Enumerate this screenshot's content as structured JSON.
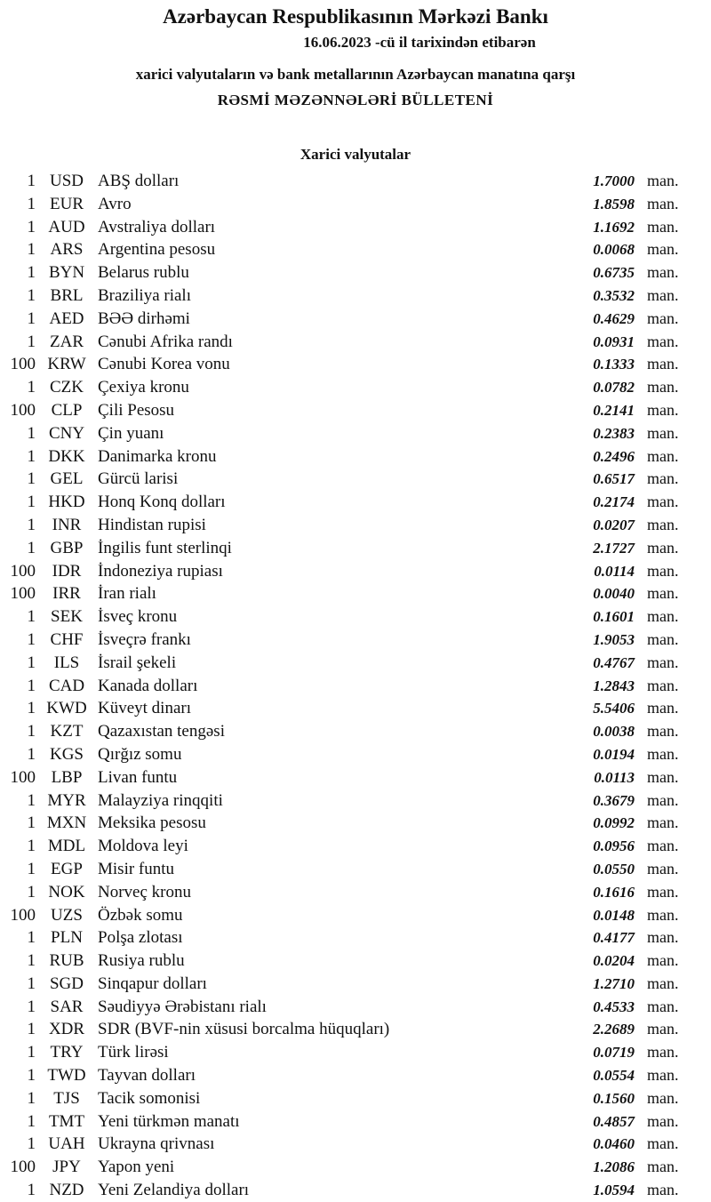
{
  "header": {
    "bank": "Azərbaycan Respublikasının Mərkəzi Bankı",
    "date_line": "16.06.2023  -cü il tarixindən etibarən",
    "subtitle": "xarici valyutaların və bank metallarının Azərbaycan manatına qarşı",
    "title": "RƏSMİ MƏZƏNNƏLƏRİ BÜLLETENİ",
    "section": "Xarici valyutalar"
  },
  "rates": [
    {
      "nominal": "1",
      "code": "USD",
      "name": "ABŞ dolları",
      "rate": "1.7000",
      "unit": "man."
    },
    {
      "nominal": "1",
      "code": "EUR",
      "name": "Avro",
      "rate": "1.8598",
      "unit": "man."
    },
    {
      "nominal": "1",
      "code": "AUD",
      "name": "Avstraliya dolları",
      "rate": "1.1692",
      "unit": "man."
    },
    {
      "nominal": "1",
      "code": "ARS",
      "name": "Argentina pesosu",
      "rate": "0.0068",
      "unit": "man."
    },
    {
      "nominal": "1",
      "code": "BYN",
      "name": "Belarus rublu",
      "rate": "0.6735",
      "unit": "man."
    },
    {
      "nominal": "1",
      "code": "BRL",
      "name": "Braziliya rialı",
      "rate": "0.3532",
      "unit": "man."
    },
    {
      "nominal": "1",
      "code": "AED",
      "name": "BƏƏ dirhəmi",
      "rate": "0.4629",
      "unit": "man."
    },
    {
      "nominal": "1",
      "code": "ZAR",
      "name": "Cənubi Afrika randı",
      "rate": "0.0931",
      "unit": "man."
    },
    {
      "nominal": "100",
      "code": "KRW",
      "name": "Cənubi Korea vonu",
      "rate": "0.1333",
      "unit": "man."
    },
    {
      "nominal": "1",
      "code": "CZK",
      "name": "Çexiya kronu",
      "rate": "0.0782",
      "unit": "man."
    },
    {
      "nominal": "100",
      "code": "CLP",
      "name": "Çili Pesosu",
      "rate": "0.2141",
      "unit": "man."
    },
    {
      "nominal": "1",
      "code": "CNY",
      "name": "Çin yuanı",
      "rate": "0.2383",
      "unit": "man."
    },
    {
      "nominal": "1",
      "code": "DKK",
      "name": "Danimarka kronu",
      "rate": "0.2496",
      "unit": "man."
    },
    {
      "nominal": "1",
      "code": "GEL",
      "name": "Gürcü larisi",
      "rate": "0.6517",
      "unit": "man."
    },
    {
      "nominal": "1",
      "code": "HKD",
      "name": "Honq Konq dolları",
      "rate": "0.2174",
      "unit": "man."
    },
    {
      "nominal": "1",
      "code": "INR",
      "name": "Hindistan rupisi",
      "rate": "0.0207",
      "unit": "man."
    },
    {
      "nominal": "1",
      "code": "GBP",
      "name": "İngilis funt sterlinqi",
      "rate": "2.1727",
      "unit": "man."
    },
    {
      "nominal": "100",
      "code": "IDR",
      "name": "İndoneziya rupiası",
      "rate": "0.0114",
      "unit": "man."
    },
    {
      "nominal": "100",
      "code": "IRR",
      "name": "İran rialı",
      "rate": "0.0040",
      "unit": "man."
    },
    {
      "nominal": "1",
      "code": "SEK",
      "name": "İsveç kronu",
      "rate": "0.1601",
      "unit": "man."
    },
    {
      "nominal": "1",
      "code": "CHF",
      "name": "İsveçrə frankı",
      "rate": "1.9053",
      "unit": "man."
    },
    {
      "nominal": "1",
      "code": "ILS",
      "name": "İsrail şekeli",
      "rate": "0.4767",
      "unit": "man."
    },
    {
      "nominal": "1",
      "code": "CAD",
      "name": "Kanada dolları",
      "rate": "1.2843",
      "unit": "man."
    },
    {
      "nominal": "1",
      "code": "KWD",
      "name": "Küveyt dinarı",
      "rate": "5.5406",
      "unit": "man."
    },
    {
      "nominal": "1",
      "code": "KZT",
      "name": "Qazaxıstan tengəsi",
      "rate": "0.0038",
      "unit": "man."
    },
    {
      "nominal": "1",
      "code": "KGS",
      "name": "Qırğız somu",
      "rate": "0.0194",
      "unit": "man."
    },
    {
      "nominal": "100",
      "code": "LBP",
      "name": "Livan funtu",
      "rate": "0.0113",
      "unit": "man."
    },
    {
      "nominal": "1",
      "code": "MYR",
      "name": "Malayziya rinqqiti",
      "rate": "0.3679",
      "unit": "man."
    },
    {
      "nominal": "1",
      "code": "MXN",
      "name": "Meksika pesosu",
      "rate": "0.0992",
      "unit": "man."
    },
    {
      "nominal": "1",
      "code": "MDL",
      "name": "Moldova leyi",
      "rate": "0.0956",
      "unit": "man."
    },
    {
      "nominal": "1",
      "code": "EGP",
      "name": "Misir funtu",
      "rate": "0.0550",
      "unit": "man."
    },
    {
      "nominal": "1",
      "code": "NOK",
      "name": "Norveç kronu",
      "rate": "0.1616",
      "unit": "man."
    },
    {
      "nominal": "100",
      "code": "UZS",
      "name": "Özbək somu",
      "rate": "0.0148",
      "unit": "man."
    },
    {
      "nominal": "1",
      "code": "PLN",
      "name": "Polşa zlotası",
      "rate": "0.4177",
      "unit": "man."
    },
    {
      "nominal": "1",
      "code": "RUB",
      "name": "Rusiya rublu",
      "rate": "0.0204",
      "unit": "man."
    },
    {
      "nominal": "1",
      "code": "SGD",
      "name": "Sinqapur dolları",
      "rate": "1.2710",
      "unit": "man."
    },
    {
      "nominal": "1",
      "code": "SAR",
      "name": "Səudiyyə Ərəbistanı rialı",
      "rate": "0.4533",
      "unit": "man."
    },
    {
      "nominal": "1",
      "code": "XDR",
      "name": "SDR (BVF-nin xüsusi borcalma hüquqları)",
      "rate": "2.2689",
      "unit": "man."
    },
    {
      "nominal": "1",
      "code": "TRY",
      "name": "Türk lirəsi",
      "rate": "0.0719",
      "unit": "man."
    },
    {
      "nominal": "1",
      "code": "TWD",
      "name": "Tayvan dolları",
      "rate": "0.0554",
      "unit": "man."
    },
    {
      "nominal": "1",
      "code": "TJS",
      "name": "Tacik somonisi",
      "rate": "0.1560",
      "unit": "man."
    },
    {
      "nominal": "1",
      "code": "TMT",
      "name": "Yeni türkmən manatı",
      "rate": "0.4857",
      "unit": "man."
    },
    {
      "nominal": "1",
      "code": "UAH",
      "name": "Ukrayna qrivnası",
      "rate": "0.0460",
      "unit": "man."
    },
    {
      "nominal": "100",
      "code": "JPY",
      "name": "Yapon yeni",
      "rate": "1.2086",
      "unit": "man."
    },
    {
      "nominal": "1",
      "code": "NZD",
      "name": "Yeni Zelandiya dolları",
      "rate": "1.0594",
      "unit": "man."
    }
  ]
}
